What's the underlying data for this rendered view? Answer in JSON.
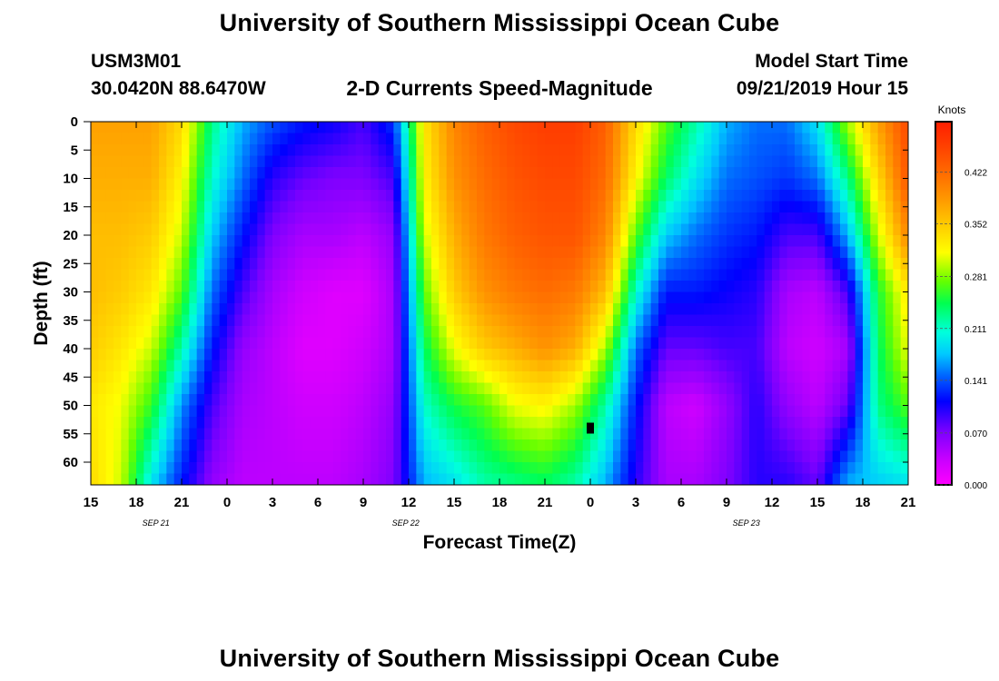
{
  "page": {
    "title_top": "University of Southern Mississippi Ocean Cube",
    "title_bottom": "University of Southern Mississippi Ocean Cube",
    "station_id": "USM3M01",
    "location": "30.0420N 88.6470W",
    "plot_title": "2-D Currents Speed-Magnitude",
    "model_start_label": "Model Start Time",
    "model_start_value": "09/21/2019 Hour 15"
  },
  "chart_data": {
    "type": "heatmap",
    "title": "2-D Currents Speed-Magnitude",
    "xlabel": "Forecast Time(Z)",
    "ylabel": "Depth (ft)",
    "x_ticks": [
      {
        "hour": 0,
        "label": "15"
      },
      {
        "hour": 3,
        "label": "18"
      },
      {
        "hour": 6,
        "label": "21"
      },
      {
        "hour": 9,
        "label": "0"
      },
      {
        "hour": 12,
        "label": "3"
      },
      {
        "hour": 15,
        "label": "6"
      },
      {
        "hour": 18,
        "label": "9"
      },
      {
        "hour": 21,
        "label": "12"
      },
      {
        "hour": 24,
        "label": "15"
      },
      {
        "hour": 27,
        "label": "18"
      },
      {
        "hour": 30,
        "label": "21"
      },
      {
        "hour": 33,
        "label": "0"
      },
      {
        "hour": 36,
        "label": "3"
      },
      {
        "hour": 39,
        "label": "6"
      },
      {
        "hour": 42,
        "label": "9"
      },
      {
        "hour": 45,
        "label": "12"
      },
      {
        "hour": 48,
        "label": "15"
      },
      {
        "hour": 51,
        "label": "18"
      },
      {
        "hour": 54,
        "label": "21"
      }
    ],
    "date_labels": [
      {
        "hour": 4.3,
        "label": "SEP 21"
      },
      {
        "hour": 20.8,
        "label": "SEP 22"
      },
      {
        "hour": 43.3,
        "label": "SEP 23"
      }
    ],
    "y_ticks": [
      0,
      5,
      10,
      15,
      20,
      25,
      30,
      35,
      40,
      45,
      50,
      55,
      60
    ],
    "xlim_hours": [
      0,
      54
    ],
    "ylim_depth_ft": [
      0,
      64
    ],
    "colorbar": {
      "title": "Knots",
      "min": 0.0,
      "max": 0.49,
      "ticks": [
        0.0,
        0.07,
        0.141,
        0.211,
        0.281,
        0.352,
        0.422
      ],
      "tick_labels": [
        "0.000",
        "0.070",
        "0.141",
        "0.211",
        "0.281",
        "0.352",
        "0.422"
      ]
    },
    "grid_x_hours": [
      0,
      2,
      4,
      6,
      8,
      10,
      12,
      14,
      16,
      18,
      20,
      22,
      24,
      26,
      28,
      30,
      32,
      34,
      36,
      38,
      40,
      42,
      44,
      46,
      48,
      50,
      52,
      54
    ],
    "grid_y_depths": [
      0,
      10,
      20,
      30,
      40,
      50,
      64
    ],
    "values_knots": [
      [
        0.38,
        0.37,
        0.36,
        0.36,
        0.35,
        0.33,
        0.34
      ],
      [
        0.38,
        0.37,
        0.36,
        0.35,
        0.33,
        0.31,
        0.3
      ],
      [
        0.38,
        0.37,
        0.35,
        0.33,
        0.3,
        0.26,
        0.19
      ],
      [
        0.34,
        0.32,
        0.3,
        0.27,
        0.22,
        0.16,
        0.12
      ],
      [
        0.23,
        0.21,
        0.18,
        0.15,
        0.12,
        0.09,
        0.06
      ],
      [
        0.17,
        0.15,
        0.12,
        0.09,
        0.06,
        0.05,
        0.04
      ],
      [
        0.14,
        0.1,
        0.07,
        0.05,
        0.04,
        0.04,
        0.04
      ],
      [
        0.12,
        0.08,
        0.05,
        0.03,
        0.02,
        0.03,
        0.04
      ],
      [
        0.11,
        0.07,
        0.05,
        0.02,
        0.02,
        0.03,
        0.04
      ],
      [
        0.09,
        0.07,
        0.04,
        0.02,
        0.03,
        0.04,
        0.05
      ],
      [
        0.13,
        0.09,
        0.06,
        0.05,
        0.05,
        0.06,
        0.07
      ],
      [
        0.33,
        0.32,
        0.3,
        0.27,
        0.24,
        0.21,
        0.17
      ],
      [
        0.4,
        0.39,
        0.37,
        0.35,
        0.31,
        0.25,
        0.19
      ],
      [
        0.43,
        0.42,
        0.41,
        0.39,
        0.35,
        0.27,
        0.22
      ],
      [
        0.45,
        0.44,
        0.43,
        0.41,
        0.37,
        0.31,
        0.23
      ],
      [
        0.46,
        0.45,
        0.44,
        0.42,
        0.39,
        0.32,
        0.24
      ],
      [
        0.46,
        0.45,
        0.44,
        0.41,
        0.37,
        0.29,
        0.22
      ],
      [
        0.43,
        0.42,
        0.4,
        0.36,
        0.29,
        0.22,
        0.17
      ],
      [
        0.34,
        0.32,
        0.27,
        0.21,
        0.15,
        0.12,
        0.1
      ],
      [
        0.27,
        0.24,
        0.18,
        0.12,
        0.08,
        0.04,
        0.05
      ],
      [
        0.22,
        0.19,
        0.15,
        0.12,
        0.08,
        0.03,
        0.05
      ],
      [
        0.17,
        0.15,
        0.13,
        0.11,
        0.09,
        0.06,
        0.07
      ],
      [
        0.15,
        0.14,
        0.12,
        0.1,
        0.09,
        0.1,
        0.1
      ],
      [
        0.15,
        0.13,
        0.09,
        0.05,
        0.04,
        0.06,
        0.1
      ],
      [
        0.19,
        0.15,
        0.09,
        0.04,
        0.03,
        0.04,
        0.08
      ],
      [
        0.29,
        0.23,
        0.17,
        0.09,
        0.05,
        0.08,
        0.17
      ],
      [
        0.38,
        0.34,
        0.3,
        0.25,
        0.24,
        0.23,
        0.18
      ],
      [
        0.45,
        0.44,
        0.4,
        0.33,
        0.31,
        0.27,
        0.19
      ]
    ],
    "marker": {
      "hour": 33,
      "depth_ft": 54,
      "label": "black square"
    }
  }
}
